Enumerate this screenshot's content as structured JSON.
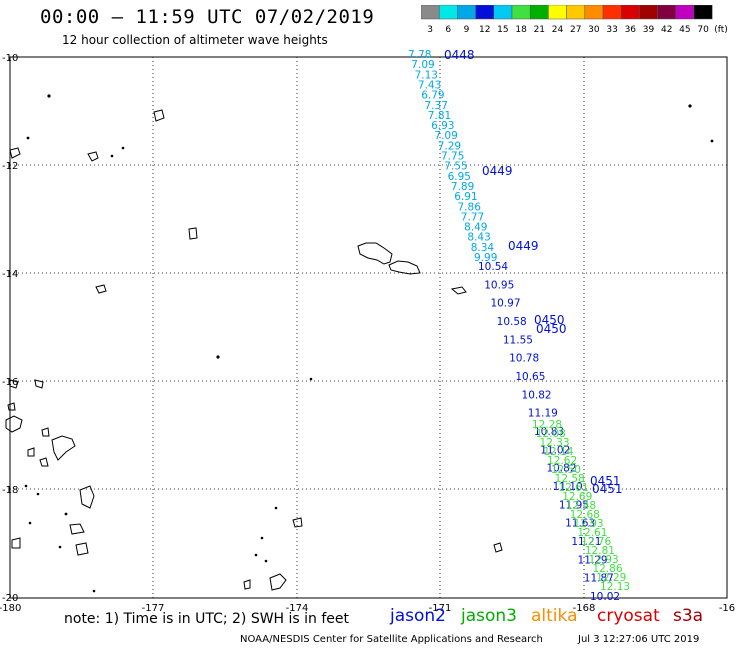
{
  "title": "00:00 – 11:59 UTC 07/02/2019",
  "subtitle": "12 hour collection of altimeter wave heights",
  "colorbar": {
    "labels": [
      "3",
      "6",
      "9",
      "12",
      "15",
      "18",
      "21",
      "24",
      "27",
      "30",
      "33",
      "36",
      "39",
      "42",
      "45",
      "70"
    ],
    "unit": "(ft)",
    "colors": [
      "#8a8a8a",
      "#00e8e8",
      "#00a8e8",
      "#0010d8",
      "#00c8f0",
      "#40e040",
      "#00b000",
      "#ffff00",
      "#ffc800",
      "#ff8c00",
      "#ff3000",
      "#d80000",
      "#a00000",
      "#800040",
      "#c000c0",
      "#000000"
    ]
  },
  "axes": {
    "lat_labels": [
      "-10",
      "-12",
      "-14",
      "-16",
      "-18",
      "-20"
    ],
    "lon_labels": [
      "-180",
      "-177",
      "-174",
      "-171",
      "-168",
      "-16"
    ]
  },
  "passes": [
    {
      "label": "0448",
      "color": "#0010d8"
    },
    {
      "label": "0449",
      "color": "#0010d8"
    },
    {
      "label": "0449",
      "color": "#0010d8"
    },
    {
      "label": "0450",
      "color": "#0010d8"
    },
    {
      "label": "0450",
      "color": "#0010d8"
    },
    {
      "label": "0451",
      "color": "#0010d8"
    },
    {
      "label": "0451",
      "color": "#0010d8"
    }
  ],
  "track_values": {
    "cyan": [
      "7.78",
      "7.09",
      "7.13",
      "7.43",
      "6.79",
      "7.37",
      "7.81",
      "6.93",
      "7.09",
      "7.29",
      "7.75",
      "7.55",
      "6.95",
      "7.89",
      "6.91",
      "7.86",
      "7.77",
      "8.49",
      "8.43",
      "8.34",
      "9.99"
    ],
    "blue": [
      "10.54",
      "10.95",
      "10.97",
      "10.58",
      "11.55",
      "10.78",
      "10.65",
      "10.82",
      "11.19",
      "10.83",
      "11.02",
      "10.82",
      "11.10",
      "11.95",
      "11.63",
      "11.21",
      "11.29",
      "11.87",
      "10.02"
    ],
    "green": [
      "12.28",
      "12.08",
      "12.33",
      "12.14",
      "12.62",
      "12.50",
      "12.58",
      "12.61",
      "12.69",
      "12.48",
      "12.68",
      "12.93",
      "12.61",
      "12.76",
      "12.81",
      "12.93",
      "12.86",
      "12.29",
      "12.13"
    ]
  },
  "note": "note: 1) Time is in UTC; 2) SWH is in feet",
  "satellites": [
    {
      "name": "jason2",
      "color": "#0010d8"
    },
    {
      "name": "jason3",
      "color": "#00b000"
    },
    {
      "name": "altika",
      "color": "#ff8c00"
    },
    {
      "name": "cryosat",
      "color": "#d80000"
    },
    {
      "name": "s3a",
      "color": "#a00000"
    }
  ],
  "credit": "NOAA/NESDIS Center for Satellite Applications and Research",
  "timestamp": "Jul  3 12:27:06 UTC 2019"
}
